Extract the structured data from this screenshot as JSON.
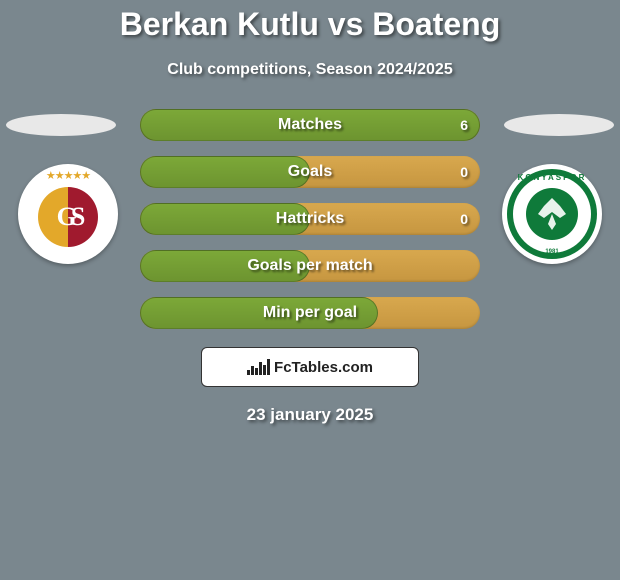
{
  "title": "Berkan Kutlu vs Boateng",
  "subtitle": "Club competitions, Season 2024/2025",
  "date_text": "23 january 2025",
  "brand": "FcTables.com",
  "colors": {
    "bg": "#7a878e",
    "bar_empty": "#c99a44",
    "bar_fill": "#76a034",
    "text": "#ffffff"
  },
  "left_club": {
    "name": "Galatasaray",
    "stars": "★★★★★",
    "letters": "GS",
    "color_left": "#e3a82a",
    "color_right": "#a01a2e"
  },
  "right_club": {
    "name": "Konyaspor",
    "ring_color": "#0f7a3a",
    "year": "1981"
  },
  "bars": [
    {
      "label": "Matches",
      "left_pct": 100,
      "right_value": "6"
    },
    {
      "label": "Goals",
      "left_pct": 50,
      "right_value": "0"
    },
    {
      "label": "Hattricks",
      "left_pct": 50,
      "right_value": "0"
    },
    {
      "label": "Goals per match",
      "left_pct": 50,
      "right_value": ""
    },
    {
      "label": "Min per goal",
      "left_pct": 70,
      "right_value": ""
    }
  ]
}
